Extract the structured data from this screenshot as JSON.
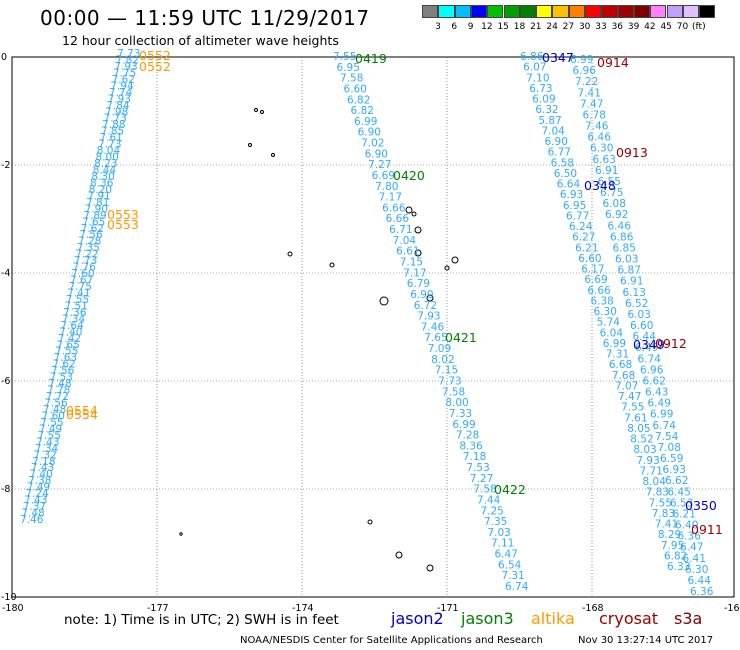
{
  "title": "00:00 — 11:59 UTC 11/29/2017",
  "subtitle": "12 hour collection of altimeter wave heights",
  "colorbar": {
    "colors": [
      "#808080",
      "#00ffff",
      "#00c0ff",
      "#0000ff",
      "#00c000",
      "#00a000",
      "#008000",
      "#ffff00",
      "#ffc000",
      "#ff8000",
      "#ff0000",
      "#c00000",
      "#a00000",
      "#800000",
      "#ff80ff",
      "#c0a0ff",
      "#e0c0ff",
      "#000000"
    ],
    "labels": [
      "3",
      "6",
      "9",
      "12",
      "15",
      "18",
      "21",
      "24",
      "27",
      "30",
      "33",
      "36",
      "39",
      "42",
      "45",
      "70",
      "(ft)"
    ]
  },
  "map": {
    "x_ticks": [
      "-180",
      "-177",
      "-174",
      "-171",
      "-168",
      "-16"
    ],
    "y_ticks": [
      "0",
      "-2",
      "-4",
      "-6",
      "-8",
      "-10"
    ]
  },
  "satellite_colors": {
    "jason2": "#0000c8",
    "jason3": "#008000",
    "altika": "#ff9900",
    "cryosat": "#a00000",
    "s3a": "#800000",
    "swh": "#33aaff"
  },
  "tracks": [
    {
      "name": "track-altika-west",
      "values": [
        "7.73",
        "7.82",
        "7.93",
        "7.75",
        "7.62",
        "7.94",
        "7.74",
        "7.93",
        "7.84",
        "7.98",
        "7.73",
        "7.88",
        "7.85",
        "7.61",
        "7.73",
        "8.04",
        "8.00",
        "8.23",
        "8.44",
        "8.30",
        "8.36",
        "8.20",
        "7.91",
        "7.81",
        "7.90",
        "7.89",
        "7.65",
        "7.62",
        "7.56",
        "7.28",
        "7.35",
        "7.22",
        "7.73",
        "7.76",
        "7.60",
        "7.67",
        "7.75",
        "7.41",
        "7.55",
        "7.51",
        "7.36",
        "7.34",
        "7.64",
        "7.40",
        "7.42",
        "7.65",
        "7.55",
        "7.63",
        "7.62",
        "7.56",
        "7.53",
        "7.48",
        "7.78",
        "7.72",
        "7.56",
        "7.48",
        "7.60",
        "7.55",
        "7.49",
        "7.55",
        "7.43",
        "7.34",
        "7.32",
        "7.18",
        "7.43",
        "7.40",
        "7.38",
        "7.49",
        "7.24",
        "7.43",
        "7.37",
        "7.48",
        "7.46"
      ]
    },
    {
      "name": "track-jason3",
      "values": [
        "7.55",
        "6.95",
        "7.58",
        "6.60",
        "6.82",
        "6.82",
        "6.99",
        "6.90",
        "7.02",
        "6.90",
        "7.27",
        "6.69",
        "7.80",
        "7.17",
        "6.66",
        "6.66",
        "6.71",
        "7.04",
        "6.61",
        "7.15",
        "7.17",
        "6.79",
        "6.90",
        "6.72",
        "7.93",
        "7.46",
        "7.65",
        "7.09",
        "8.02",
        "7.15",
        "7.73",
        "7.58",
        "8.00",
        "7.33",
        "6.99",
        "7.28",
        "8.36",
        "7.18",
        "7.53",
        "7.27",
        "7.58",
        "7.44",
        "7.25",
        "7.35",
        "7.03",
        "7.11",
        "6.47",
        "6.54",
        "7.31",
        "6.74"
      ]
    },
    {
      "name": "track-jason2-a",
      "values": [
        "6.86",
        "6.07",
        "7.10",
        "6.73",
        "6.09",
        "6.32",
        "5.87",
        "7.04",
        "6.90",
        "6.77",
        "6.58",
        "6.50",
        "6.64",
        "6.93",
        "6.95",
        "6.77",
        "6.24",
        "6.27",
        "6.21",
        "6.60",
        "6.17",
        "6.69",
        "6.66",
        "6.38",
        "6.30",
        "5.74",
        "6.04",
        "6.99",
        "7.31",
        "6.68",
        "7.68",
        "7.07",
        "7.47",
        "7.55",
        "7.61",
        "8.05",
        "8.52",
        "8.03",
        "7.93",
        "7.71",
        "8.04",
        "7.83",
        "7.55",
        "7.83",
        "7.41",
        "8.29",
        "7.95",
        "6.82",
        "6.33"
      ]
    },
    {
      "name": "track-jason2-b",
      "values": [
        "6.99",
        "6.96",
        "7.22",
        "7.41",
        "7.47",
        "6.78",
        "7.46",
        "6.46",
        "6.30",
        "6.63",
        "6.91",
        "6.55",
        "6.75",
        "6.08",
        "6.92",
        "6.46",
        "6.86",
        "6.85",
        "6.03",
        "6.87",
        "6.91",
        "6.13",
        "6.52",
        "6.03",
        "6.60",
        "6.44",
        "6.49",
        "6.74",
        "6.96",
        "6.62",
        "6.43",
        "6.49",
        "6.99",
        "6.74",
        "7.54",
        "7.08",
        "6.59",
        "6.93",
        "6.62",
        "6.45",
        "6.53",
        "6.21",
        "6.40",
        "6.36",
        "6.47",
        "6.41",
        "6.30",
        "6.44",
        "6.36"
      ]
    }
  ],
  "time_labels": [
    {
      "name": "time-0552-a",
      "text": "0552",
      "sat": "altika"
    },
    {
      "name": "time-0552-b",
      "text": "0552",
      "sat": "altika"
    },
    {
      "name": "time-0553-a",
      "text": "0553",
      "sat": "altika"
    },
    {
      "name": "time-0553-b",
      "text": "0553",
      "sat": "altika"
    },
    {
      "name": "time-0554-a",
      "text": "0554",
      "sat": "altika"
    },
    {
      "name": "time-0554-b",
      "text": "0554",
      "sat": "altika"
    },
    {
      "name": "time-0419",
      "text": "0419",
      "sat": "jason3"
    },
    {
      "name": "time-0420",
      "text": "0420",
      "sat": "jason3"
    },
    {
      "name": "time-0421",
      "text": "0421",
      "sat": "jason3"
    },
    {
      "name": "time-0422",
      "text": "0422",
      "sat": "jason3"
    },
    {
      "name": "time-0347",
      "text": "0347",
      "sat": "jason2"
    },
    {
      "name": "time-0348",
      "text": "0348",
      "sat": "jason2"
    },
    {
      "name": "time-0349",
      "text": "0349",
      "sat": "jason2"
    },
    {
      "name": "time-0350",
      "text": "0350",
      "sat": "jason2"
    },
    {
      "name": "time-0914",
      "text": "0914",
      "sat": "cryosat"
    },
    {
      "name": "time-0913",
      "text": "0913",
      "sat": "cryosat"
    },
    {
      "name": "time-0912",
      "text": "0912",
      "sat": "cryosat"
    },
    {
      "name": "time-0911",
      "text": "0911",
      "sat": "cryosat"
    }
  ],
  "note": "note:  1) Time is in UTC;  2) SWH is in feet",
  "legend": {
    "jason2": "jason2",
    "jason3": "jason3",
    "altika": "altika",
    "cryosat": "cryosat",
    "s3a": "s3a"
  },
  "credit": "NOAA/NESDIS Center for Satellite Applications and Research",
  "timestamp": "Nov 30 13:27:14 UTC 2017"
}
